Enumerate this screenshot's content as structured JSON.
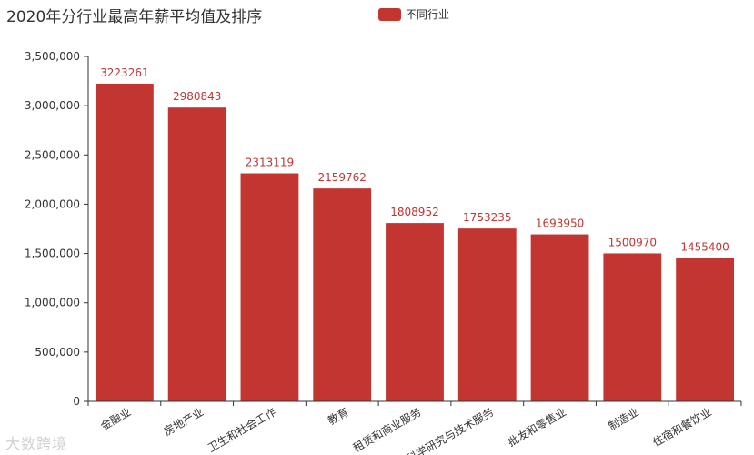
{
  "chart_data": {
    "type": "bar",
    "title": "2020年分行业最高年薪平均值及排序",
    "legend": {
      "label": "不同行业",
      "position": "top-center"
    },
    "color": "#c23531",
    "categories": [
      "金融业",
      "房地产业",
      "卫生和社会工作",
      "教育",
      "租赁和商业服务",
      "科学研究与技术服务",
      "批发和零售业",
      "制造业",
      "住宿和餐饮业"
    ],
    "series": [
      {
        "name": "不同行业",
        "values": [
          3223261,
          2980843,
          2313119,
          2159762,
          1808952,
          1753235,
          1693950,
          1500970,
          1455400
        ]
      }
    ],
    "ylim": [
      0,
      3500000
    ],
    "yticks": [
      "0",
      "500,000",
      "1,000,000",
      "1,500,000",
      "2,000,000",
      "2,500,000",
      "3,000,000",
      "3,500,000"
    ],
    "xlabel": "",
    "ylabel": "",
    "grid": false,
    "show_data_labels": true
  },
  "watermark": "大数跨境"
}
